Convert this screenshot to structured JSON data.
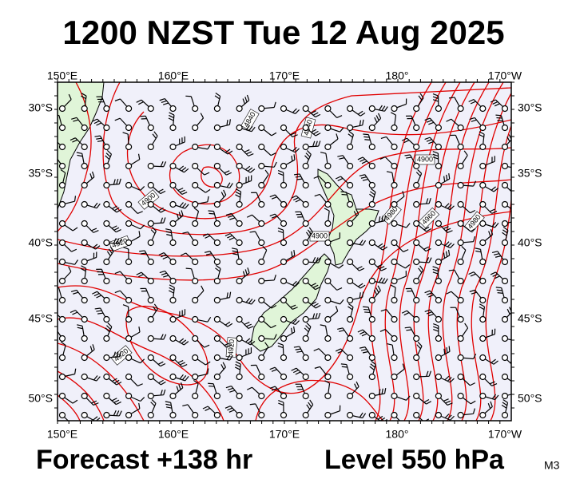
{
  "title": "1200 NZST Tue 12 Aug 2025",
  "map": {
    "top_labels": [
      "150°E",
      "160°E",
      "170°E",
      "180°",
      "170°W"
    ],
    "bottom_labels": [
      "150°E",
      "160°E",
      "170°E",
      "180°",
      "170°W"
    ],
    "left_labels": [
      "30°S",
      "35°S",
      "40°S",
      "45°S",
      "50°S"
    ],
    "right_labels": [
      "30°S",
      "35°S",
      "40°S",
      "45°S",
      "50°S"
    ],
    "contour_labels": [
      "4840",
      "4840",
      "4900",
      "4920",
      "4900",
      "4900",
      "4980",
      "4960",
      "4980",
      "4920",
      "4920"
    ]
  },
  "footer": {
    "forecast": "Forecast +138 hr",
    "level": "Level 550 hPa",
    "model": "M3"
  }
}
